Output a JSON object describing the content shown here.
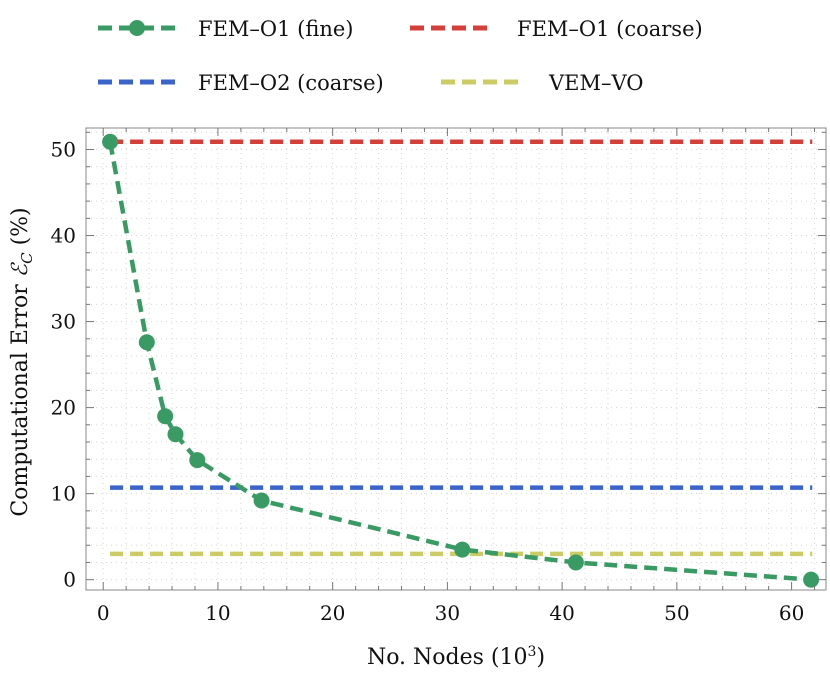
{
  "chart_data": {
    "type": "line",
    "title": "",
    "xlabel": "No. Nodes (10",
    "xlabel_sup": "3",
    "xlabel_end": ")",
    "ylabel": "Computational Error ",
    "ylabel_symbol": "ℰ",
    "ylabel_sub": "C",
    "ylabel_end": " (%)",
    "xlim": [
      -1.5,
      63
    ],
    "ylim": [
      -1.2,
      52.5
    ],
    "xticks": [
      0,
      10,
      20,
      30,
      40,
      50,
      60
    ],
    "yticks": [
      0,
      10,
      20,
      30,
      40,
      50
    ],
    "grid": "dotted",
    "legend_position": "top",
    "series": [
      {
        "name": "FEM–O1 (fine)",
        "style": "line-markers",
        "color": "#3a9a63",
        "x": [
          0.6,
          3.8,
          5.4,
          6.3,
          8.2,
          13.8,
          31.3,
          41.2,
          61.7
        ],
        "y": [
          50.9,
          27.6,
          19.0,
          16.9,
          13.9,
          9.2,
          3.5,
          2.0,
          0.0
        ]
      },
      {
        "name": "FEM–O1 (coarse)",
        "style": "constant",
        "color": "#d43f3a",
        "y": 50.9
      },
      {
        "name": "FEM–O2 (coarse)",
        "style": "constant",
        "color": "#3a63cc",
        "y": 10.7
      },
      {
        "name": "VEM–VO",
        "style": "constant",
        "color": "#cccc66",
        "y": 3.0
      }
    ]
  }
}
